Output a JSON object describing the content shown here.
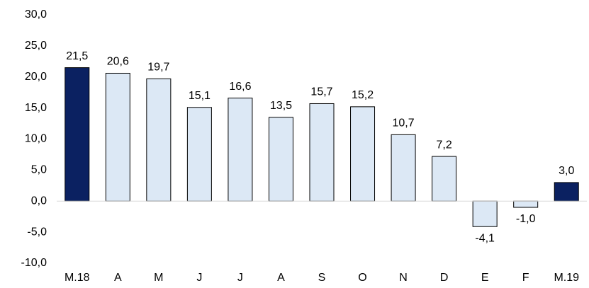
{
  "chart_data": {
    "type": "bar",
    "categories": [
      "M.18",
      "A",
      "M",
      "J",
      "J",
      "A",
      "S",
      "O",
      "N",
      "D",
      "E",
      "F",
      "M.19"
    ],
    "values": [
      21.5,
      20.6,
      19.7,
      15.1,
      16.6,
      13.5,
      15.7,
      15.2,
      10.7,
      7.2,
      -4.1,
      -1.0,
      3.0
    ],
    "value_labels": [
      "21,5",
      "20,6",
      "19,7",
      "15,1",
      "16,6",
      "13,5",
      "15,7",
      "15,2",
      "10,7",
      "7,2",
      "-4,1",
      "-1,0",
      "3,0"
    ],
    "colors": [
      "#0b2161",
      "#dce8f5",
      "#dce8f5",
      "#dce8f5",
      "#dce8f5",
      "#dce8f5",
      "#dce8f5",
      "#dce8f5",
      "#dce8f5",
      "#dce8f5",
      "#dce8f5",
      "#dce8f5",
      "#0b2161"
    ],
    "ylim": [
      -10,
      30
    ],
    "yticks": [
      {
        "value": -10,
        "label": "-10,0"
      },
      {
        "value": -5,
        "label": "-5,0"
      },
      {
        "value": 0,
        "label": "0,0"
      },
      {
        "value": 5,
        "label": "5,0"
      },
      {
        "value": 10,
        "label": "10,0"
      },
      {
        "value": 15,
        "label": "15,0"
      },
      {
        "value": 20,
        "label": "20,0"
      },
      {
        "value": 25,
        "label": "25,0"
      },
      {
        "value": 30,
        "label": "30,0"
      }
    ],
    "grid": false
  }
}
